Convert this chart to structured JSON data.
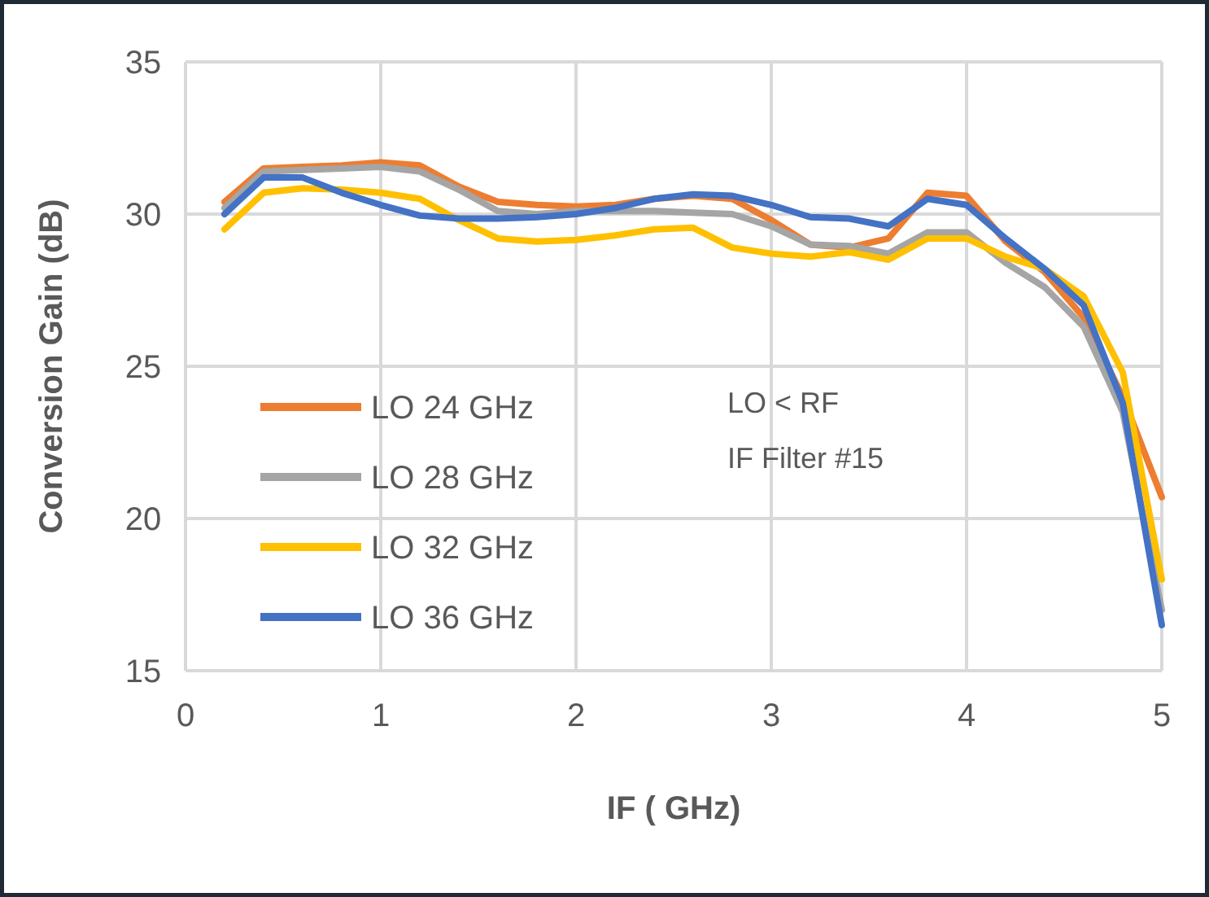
{
  "chart_data": {
    "type": "line",
    "xlabel": "IF ( GHz)",
    "ylabel": "Conversion Gain (dB)",
    "x": [
      0.2,
      0.4,
      0.6,
      0.8,
      1.0,
      1.2,
      1.4,
      1.6,
      1.8,
      2.0,
      2.2,
      2.4,
      2.6,
      2.8,
      3.0,
      3.2,
      3.4,
      3.6,
      3.8,
      4.0,
      4.2,
      4.4,
      4.6,
      4.8,
      5.0
    ],
    "series": [
      {
        "name": "LO 24 GHz",
        "color": "#ed7d31",
        "values": [
          30.4,
          31.5,
          31.55,
          31.6,
          31.7,
          31.6,
          30.9,
          30.4,
          30.3,
          30.25,
          30.3,
          30.5,
          30.6,
          30.5,
          29.8,
          29.0,
          28.9,
          29.2,
          30.7,
          30.6,
          29.1,
          28.1,
          26.6,
          24.0,
          20.7
        ]
      },
      {
        "name": "LO 28 GHz",
        "color": "#a5a5a5",
        "values": [
          30.2,
          31.4,
          31.45,
          31.5,
          31.55,
          31.4,
          30.8,
          30.1,
          30.0,
          30.1,
          30.1,
          30.1,
          30.05,
          30.0,
          29.6,
          29.0,
          28.95,
          28.7,
          29.4,
          29.4,
          28.4,
          27.6,
          26.3,
          23.5,
          17.0
        ]
      },
      {
        "name": "LO 32 GHz",
        "color": "#ffc000",
        "values": [
          29.5,
          30.7,
          30.85,
          30.8,
          30.7,
          30.5,
          29.8,
          29.2,
          29.1,
          29.15,
          29.3,
          29.5,
          29.55,
          28.9,
          28.7,
          28.6,
          28.75,
          28.5,
          29.2,
          29.2,
          28.6,
          28.2,
          27.3,
          24.8,
          18.0
        ]
      },
      {
        "name": "LO 36 GHz",
        "color": "#4472c4",
        "values": [
          30.0,
          31.2,
          31.2,
          30.7,
          30.3,
          29.95,
          29.85,
          29.85,
          29.9,
          30.0,
          30.2,
          30.5,
          30.65,
          30.6,
          30.3,
          29.9,
          29.85,
          29.6,
          30.5,
          30.3,
          29.2,
          28.2,
          27.0,
          23.8,
          16.5
        ]
      }
    ],
    "xlim": [
      0,
      5
    ],
    "xticks": [
      0,
      1,
      2,
      3,
      4,
      5
    ],
    "ylim": [
      15,
      35
    ],
    "yticks": [
      15,
      20,
      25,
      30,
      35
    ],
    "grid": true,
    "legend": "left",
    "line_style": "solid",
    "annotations": [
      "LO < RF",
      "IF Filter #15"
    ]
  }
}
